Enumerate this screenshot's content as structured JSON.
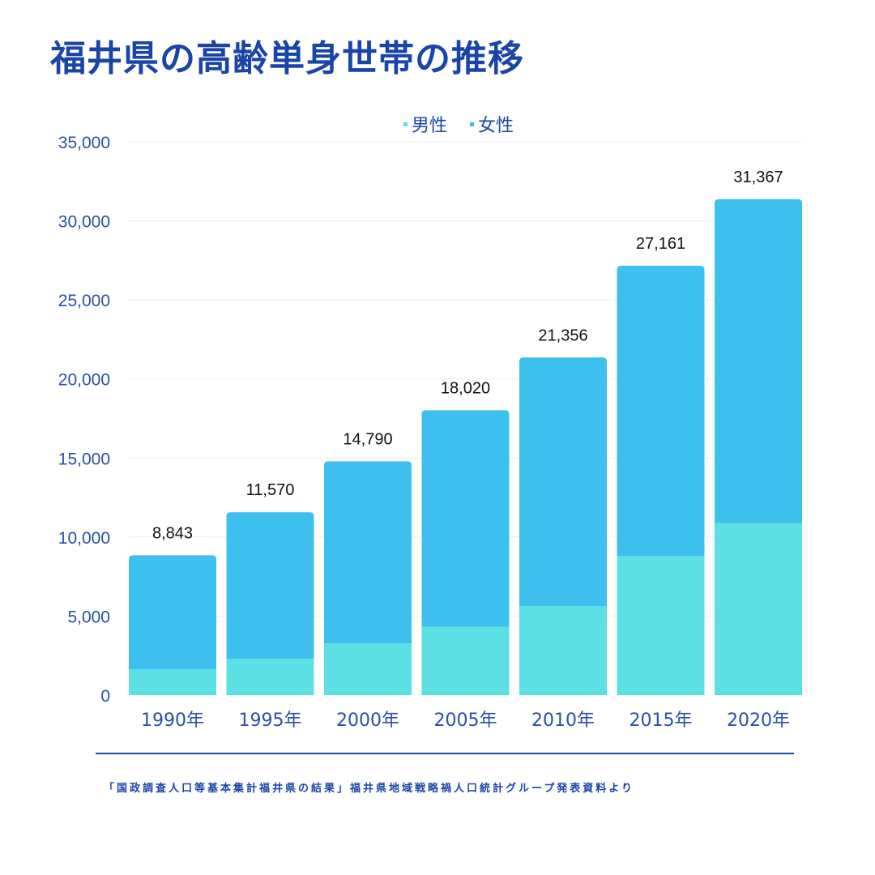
{
  "title": "福井県の高齢単身世帯の推移",
  "source": "「国政調査人口等基本集計福井県の結果」福井県地域戦略禍人口統計グループ発表資料より",
  "colors": {
    "title": "#1a45a8",
    "male": "#5ce0e4",
    "female": "#3ec0ef",
    "grid": "#eeeeee"
  },
  "chart_data": {
    "type": "bar",
    "stacked": true,
    "categories": [
      "1990年",
      "1995年",
      "2000年",
      "2005年",
      "2010年",
      "2015年",
      "2020年"
    ],
    "series": [
      {
        "name": "男性",
        "values": [
          1640,
          2300,
          3270,
          4330,
          5620,
          8780,
          10890
        ]
      },
      {
        "name": "女性",
        "values": [
          7203,
          9270,
          11520,
          13690,
          15736,
          18381,
          20477
        ]
      }
    ],
    "totals": [
      "8,843",
      "11,570",
      "14,790",
      "18,020",
      "21,356",
      "27,161",
      "31,367"
    ],
    "yticks": [
      "0",
      "5,000",
      "10,000",
      "15,000",
      "20,000",
      "25,000",
      "30,000",
      "35,000"
    ],
    "ylim": [
      0,
      35000
    ],
    "grid": true,
    "legend_position": "top-center"
  }
}
